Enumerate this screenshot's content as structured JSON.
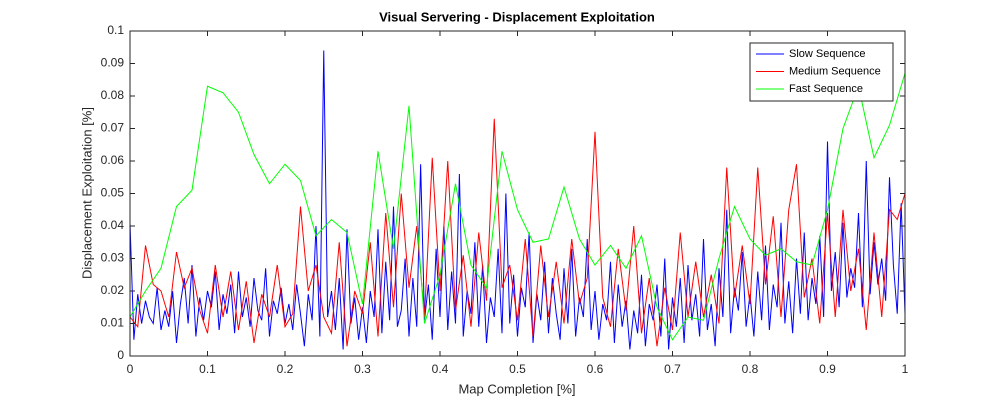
{
  "chart_data": {
    "type": "line",
    "title": "Visual Servering - Displacement Exploitation",
    "xlabel": "Map Completion [%]",
    "ylabel": "Displacement Exploitation [%]",
    "xlim": [
      0,
      1
    ],
    "xticks": [
      0,
      0.1,
      0.2,
      0.3,
      0.4,
      0.5,
      0.6,
      0.7,
      0.8,
      0.9,
      1
    ],
    "ylim": [
      0,
      0.1
    ],
    "yticks": [
      0,
      0.01,
      0.02,
      0.03,
      0.04,
      0.05,
      0.06,
      0.07,
      0.08,
      0.09,
      0.1
    ],
    "grid": false,
    "legend": "northeast",
    "series": [
      {
        "name": "Slow Sequence",
        "color": "#0000ff",
        "x": [
          0,
          0.005,
          0.01,
          0.015,
          0.02,
          0.025,
          0.03,
          0.035,
          0.04,
          0.045,
          0.05,
          0.055,
          0.06,
          0.065,
          0.07,
          0.075,
          0.08,
          0.085,
          0.09,
          0.095,
          0.1,
          0.105,
          0.11,
          0.115,
          0.12,
          0.125,
          0.13,
          0.135,
          0.14,
          0.145,
          0.15,
          0.155,
          0.16,
          0.165,
          0.17,
          0.175,
          0.18,
          0.185,
          0.19,
          0.195,
          0.2,
          0.205,
          0.21,
          0.215,
          0.22,
          0.225,
          0.23,
          0.235,
          0.24,
          0.245,
          0.25,
          0.255,
          0.26,
          0.265,
          0.27,
          0.275,
          0.28,
          0.285,
          0.29,
          0.295,
          0.3,
          0.305,
          0.31,
          0.315,
          0.32,
          0.325,
          0.33,
          0.335,
          0.34,
          0.345,
          0.35,
          0.355,
          0.36,
          0.365,
          0.37,
          0.375,
          0.38,
          0.385,
          0.39,
          0.395,
          0.4,
          0.405,
          0.41,
          0.415,
          0.42,
          0.425,
          0.43,
          0.435,
          0.44,
          0.445,
          0.45,
          0.455,
          0.46,
          0.465,
          0.47,
          0.475,
          0.48,
          0.485,
          0.49,
          0.495,
          0.5,
          0.505,
          0.51,
          0.515,
          0.52,
          0.525,
          0.53,
          0.535,
          0.54,
          0.545,
          0.55,
          0.555,
          0.56,
          0.565,
          0.57,
          0.575,
          0.58,
          0.585,
          0.59,
          0.595,
          0.6,
          0.605,
          0.61,
          0.615,
          0.62,
          0.625,
          0.63,
          0.635,
          0.64,
          0.645,
          0.65,
          0.655,
          0.66,
          0.665,
          0.67,
          0.675,
          0.68,
          0.685,
          0.69,
          0.695,
          0.7,
          0.705,
          0.71,
          0.715,
          0.72,
          0.725,
          0.73,
          0.735,
          0.74,
          0.745,
          0.75,
          0.755,
          0.76,
          0.765,
          0.77,
          0.775,
          0.78,
          0.785,
          0.79,
          0.795,
          0.8,
          0.805,
          0.81,
          0.815,
          0.82,
          0.825,
          0.83,
          0.835,
          0.84,
          0.845,
          0.85,
          0.855,
          0.86,
          0.865,
          0.87,
          0.875,
          0.88,
          0.885,
          0.89,
          0.895,
          0.9,
          0.905,
          0.91,
          0.915,
          0.92,
          0.925,
          0.93,
          0.935,
          0.94,
          0.945,
          0.95,
          0.955,
          0.96,
          0.965,
          0.97,
          0.975,
          0.98,
          0.985,
          0.99,
          0.995,
          1
        ],
        "values": [
          0.041,
          0.005,
          0.019,
          0.01,
          0.017,
          0.012,
          0.01,
          0.021,
          0.008,
          0.014,
          0.009,
          0.02,
          0.004,
          0.016,
          0.024,
          0.01,
          0.028,
          0.006,
          0.018,
          0.011,
          0.02,
          0.015,
          0.026,
          0.008,
          0.019,
          0.013,
          0.022,
          0.007,
          0.026,
          0.012,
          0.018,
          0.009,
          0.024,
          0.014,
          0.011,
          0.027,
          0.006,
          0.017,
          0.013,
          0.021,
          0.01,
          0.016,
          0.008,
          0.022,
          0.013,
          0.003,
          0.019,
          0.011,
          0.04,
          0.006,
          0.094,
          0.012,
          0.02,
          0.008,
          0.024,
          0.002,
          0.039,
          0.01,
          0.018,
          0.005,
          0.015,
          0.004,
          0.02,
          0.012,
          0.039,
          0.007,
          0.029,
          0.011,
          0.046,
          0.009,
          0.014,
          0.03,
          0.006,
          0.024,
          0.009,
          0.059,
          0.011,
          0.022,
          0.005,
          0.033,
          0.012,
          0.04,
          0.008,
          0.026,
          0.01,
          0.056,
          0.006,
          0.02,
          0.013,
          0.035,
          0.009,
          0.028,
          0.004,
          0.018,
          0.012,
          0.033,
          0.007,
          0.05,
          0.01,
          0.025,
          0.006,
          0.021,
          0.015,
          0.038,
          0.004,
          0.019,
          0.011,
          0.029,
          0.007,
          0.024,
          0.013,
          0.005,
          0.027,
          0.01,
          0.033,
          0.006,
          0.018,
          0.012,
          0.036,
          0.008,
          0.02,
          0.005,
          0.016,
          0.011,
          0.029,
          0.004,
          0.022,
          0.009,
          0.017,
          0.002,
          0.014,
          0.007,
          0.025,
          0.003,
          0.016,
          0.011,
          0.022,
          0.006,
          0.03,
          0.002,
          0.018,
          0.009,
          0.024,
          0.004,
          0.028,
          0.011,
          0.019,
          0.006,
          0.036,
          0.008,
          0.016,
          0.003,
          0.027,
          0.012,
          0.045,
          0.007,
          0.021,
          0.014,
          0.032,
          0.009,
          0.019,
          0.006,
          0.026,
          0.011,
          0.034,
          0.008,
          0.022,
          0.015,
          0.041,
          0.01,
          0.023,
          0.007,
          0.03,
          0.013,
          0.038,
          0.011,
          0.024,
          0.016,
          0.037,
          0.012,
          0.066,
          0.02,
          0.032,
          0.015,
          0.041,
          0.018,
          0.027,
          0.021,
          0.044,
          0.015,
          0.06,
          0.019,
          0.035,
          0.022,
          0.03,
          0.017,
          0.055,
          0.028,
          0.013,
          0.047,
          0.013
        ]
      },
      {
        "name": "Medium Sequence",
        "color": "#ff0000",
        "x": [
          0,
          0.01,
          0.02,
          0.03,
          0.04,
          0.05,
          0.06,
          0.07,
          0.08,
          0.09,
          0.1,
          0.11,
          0.12,
          0.13,
          0.14,
          0.15,
          0.16,
          0.17,
          0.18,
          0.19,
          0.2,
          0.21,
          0.22,
          0.23,
          0.24,
          0.25,
          0.26,
          0.27,
          0.28,
          0.29,
          0.3,
          0.31,
          0.32,
          0.33,
          0.34,
          0.35,
          0.36,
          0.37,
          0.38,
          0.39,
          0.4,
          0.41,
          0.42,
          0.43,
          0.44,
          0.45,
          0.46,
          0.47,
          0.48,
          0.49,
          0.5,
          0.51,
          0.52,
          0.53,
          0.54,
          0.55,
          0.56,
          0.57,
          0.58,
          0.59,
          0.6,
          0.61,
          0.62,
          0.63,
          0.64,
          0.65,
          0.66,
          0.67,
          0.68,
          0.69,
          0.7,
          0.71,
          0.72,
          0.73,
          0.74,
          0.75,
          0.76,
          0.77,
          0.78,
          0.79,
          0.8,
          0.81,
          0.82,
          0.83,
          0.84,
          0.85,
          0.86,
          0.87,
          0.88,
          0.89,
          0.9,
          0.91,
          0.92,
          0.93,
          0.94,
          0.95,
          0.96,
          0.97,
          0.98,
          0.99,
          1
        ],
        "values": [
          0.012,
          0.009,
          0.034,
          0.022,
          0.02,
          0.012,
          0.032,
          0.021,
          0.027,
          0.014,
          0.007,
          0.028,
          0.012,
          0.026,
          0.008,
          0.023,
          0.004,
          0.019,
          0.012,
          0.028,
          0.009,
          0.013,
          0.046,
          0.02,
          0.028,
          0.012,
          0.007,
          0.035,
          0.003,
          0.02,
          0.013,
          0.035,
          0.006,
          0.044,
          0.015,
          0.05,
          0.021,
          0.04,
          0.012,
          0.061,
          0.02,
          0.06,
          0.014,
          0.031,
          0.009,
          0.038,
          0.017,
          0.073,
          0.021,
          0.028,
          0.011,
          0.036,
          0.006,
          0.034,
          0.012,
          0.029,
          0.01,
          0.036,
          0.016,
          0.024,
          0.069,
          0.018,
          0.009,
          0.033,
          0.014,
          0.04,
          0.007,
          0.024,
          0.003,
          0.021,
          0.008,
          0.038,
          0.012,
          0.029,
          0.012,
          0.025,
          0.01,
          0.058,
          0.018,
          0.034,
          0.016,
          0.058,
          0.022,
          0.043,
          0.012,
          0.045,
          0.059,
          0.018,
          0.03,
          0.01,
          0.044,
          0.012,
          0.045,
          0.02,
          0.033,
          0.008,
          0.038,
          0.012,
          0.045,
          0.042,
          0.05
        ]
      },
      {
        "name": "Fast Sequence",
        "color": "#00ff00",
        "x": [
          0,
          0.02,
          0.04,
          0.06,
          0.08,
          0.1,
          0.12,
          0.14,
          0.16,
          0.18,
          0.2,
          0.22,
          0.24,
          0.26,
          0.28,
          0.3,
          0.32,
          0.34,
          0.36,
          0.38,
          0.4,
          0.42,
          0.44,
          0.46,
          0.48,
          0.5,
          0.52,
          0.54,
          0.56,
          0.58,
          0.6,
          0.62,
          0.64,
          0.66,
          0.68,
          0.7,
          0.72,
          0.74,
          0.76,
          0.78,
          0.8,
          0.82,
          0.84,
          0.86,
          0.88,
          0.9,
          0.92,
          0.94,
          0.96,
          0.98,
          1
        ],
        "values": [
          0.012,
          0.02,
          0.027,
          0.046,
          0.051,
          0.083,
          0.081,
          0.075,
          0.062,
          0.053,
          0.059,
          0.054,
          0.037,
          0.042,
          0.038,
          0.016,
          0.063,
          0.033,
          0.077,
          0.01,
          0.025,
          0.053,
          0.028,
          0.021,
          0.063,
          0.045,
          0.035,
          0.036,
          0.052,
          0.036,
          0.028,
          0.034,
          0.027,
          0.037,
          0.015,
          0.005,
          0.012,
          0.011,
          0.03,
          0.046,
          0.036,
          0.031,
          0.033,
          0.029,
          0.028,
          0.045,
          0.07,
          0.083,
          0.061,
          0.071,
          0.087
        ]
      }
    ]
  }
}
